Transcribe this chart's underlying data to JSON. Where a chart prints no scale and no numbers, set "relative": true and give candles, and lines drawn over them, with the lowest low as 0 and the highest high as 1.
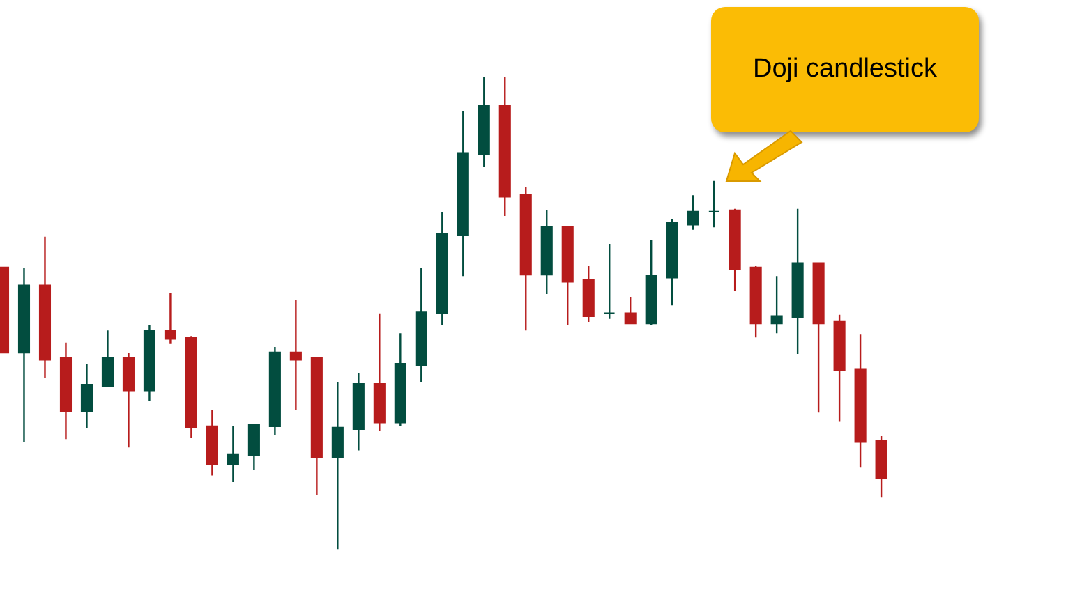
{
  "chart_data": {
    "type": "candlestick",
    "relative": true,
    "grid": false,
    "categories": [
      null,
      null,
      null,
      null,
      null,
      null,
      null,
      null,
      null,
      null,
      null,
      null,
      null,
      null,
      null,
      null,
      null,
      null,
      null,
      null,
      null,
      null,
      null,
      null,
      null,
      null,
      null,
      null,
      null,
      null,
      null,
      null,
      null,
      null,
      null,
      null,
      null,
      null,
      null,
      null,
      null,
      null,
      null
    ],
    "ohlc": [
      [
        0.596,
        0.596,
        0.416,
        0.416
      ],
      [
        0.416,
        0.596,
        0.227,
        0.558
      ],
      [
        0.558,
        0.661,
        0.363,
        0.401
      ],
      [
        0.404,
        0.437,
        0.233,
        0.292
      ],
      [
        0.292,
        0.392,
        0.257,
        0.348
      ],
      [
        0.345,
        0.463,
        0.345,
        0.404
      ],
      [
        0.404,
        0.416,
        0.215,
        0.336
      ],
      [
        0.336,
        0.475,
        0.313,
        0.463
      ],
      [
        0.463,
        0.543,
        0.434,
        0.445
      ],
      [
        0.448,
        0.451,
        0.236,
        0.257
      ],
      [
        0.26,
        0.295,
        0.156,
        0.18
      ],
      [
        0.18,
        0.26,
        0.142,
        0.201
      ],
      [
        0.198,
        0.265,
        0.168,
        0.263
      ],
      [
        0.26,
        0.428,
        0.242,
        0.416
      ],
      [
        0.416,
        0.528,
        0.295,
        0.401
      ],
      [
        0.404,
        0.407,
        0.115,
        0.195
      ],
      [
        0.195,
        0.354,
        0,
        0.257
      ],
      [
        0.254,
        0.372,
        0.209,
        0.351
      ],
      [
        0.351,
        0.499,
        0.251,
        0.268
      ],
      [
        0.268,
        0.457,
        0.26,
        0.392
      ],
      [
        0.389,
        0.596,
        0.354,
        0.501
      ],
      [
        0.499,
        0.714,
        0.475,
        0.667
      ],
      [
        0.664,
        0.926,
        0.578,
        0.838
      ],
      [
        0.835,
        1,
        0.808,
        0.938
      ],
      [
        0.938,
        1,
        0.705,
        0.746
      ],
      [
        0.749,
        0.767,
        0.463,
        0.581
      ],
      [
        0.581,
        0.717,
        0.54,
        0.681
      ],
      [
        0.681,
        0.681,
        0.475,
        0.566
      ],
      [
        0.569,
        0.599,
        0.481,
        0.493
      ],
      [
        0.499,
        0.646,
        0.487,
        0.499
      ],
      [
        0.499,
        0.534,
        0.478,
        0.478
      ],
      [
        0.478,
        0.655,
        0.475,
        0.578
      ],
      [
        0.575,
        0.699,
        0.516,
        0.69
      ],
      [
        0.687,
        0.749,
        0.676,
        0.714
      ],
      [
        0.714,
        0.779,
        0.681,
        0.714
      ],
      [
        0.717,
        0.72,
        0.546,
        0.593
      ],
      [
        0.596,
        0.599,
        0.448,
        0.478
      ],
      [
        0.478,
        0.578,
        0.457,
        0.493
      ],
      [
        0.49,
        0.72,
        0.413,
        0.605
      ],
      [
        0.605,
        0.605,
        0.289,
        0.478
      ],
      [
        0.481,
        0.496,
        0.271,
        0.378
      ],
      [
        0.381,
        0.454,
        0.174,
        0.227
      ],
      [
        0.23,
        0.239,
        0.109,
        0.15
      ]
    ],
    "colors": [
      "#b71c1c",
      "#024d3f",
      "#b71c1c",
      "#b71c1c",
      "#024d3f",
      "#024d3f",
      "#b71c1c",
      "#024d3f",
      "#b71c1c",
      "#b71c1c",
      "#b71c1c",
      "#024d3f",
      "#024d3f",
      "#024d3f",
      "#b71c1c",
      "#b71c1c",
      "#024d3f",
      "#024d3f",
      "#b71c1c",
      "#024d3f",
      "#024d3f",
      "#024d3f",
      "#024d3f",
      "#024d3f",
      "#b71c1c",
      "#b71c1c",
      "#024d3f",
      "#b71c1c",
      "#b71c1c",
      "#024d3f",
      "#b71c1c",
      "#024d3f",
      "#024d3f",
      "#024d3f",
      "#024d3f",
      "#b71c1c",
      "#b71c1c",
      "#024d3f",
      "#024d3f",
      "#b71c1c",
      "#b71c1c",
      "#b71c1c",
      "#b71c1c"
    ],
    "annotations": [
      "Doji candlestick"
    ]
  }
}
